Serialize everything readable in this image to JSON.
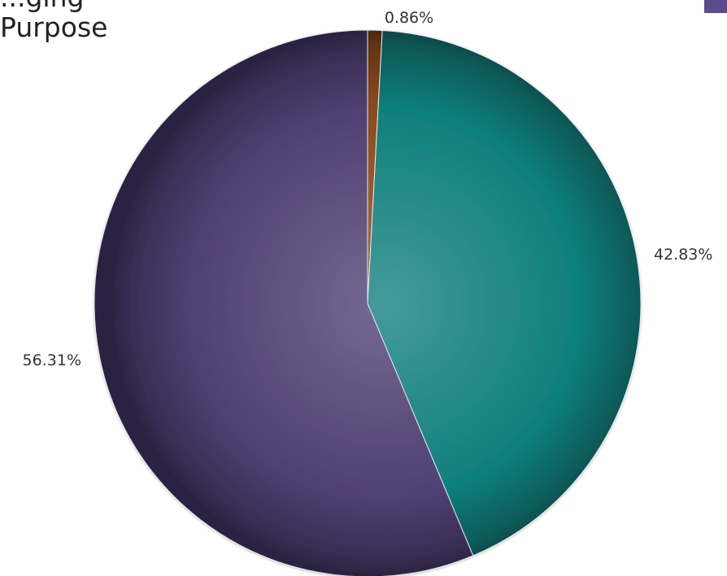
{
  "chart_data": {
    "type": "pie",
    "title_lines": [
      "...ging",
      "Purpose"
    ],
    "slices": [
      {
        "label": "0.86%",
        "value": 0.86,
        "color": "#8b4a1c"
      },
      {
        "label": "42.83%",
        "value": 42.83,
        "color": "#0f7f7c"
      },
      {
        "label": "56.31%",
        "value": 56.31,
        "color": "#4f3f73"
      }
    ],
    "start_angle_deg": 0,
    "direction": "clockwise",
    "legend": {
      "placement": "top-right",
      "partially_visible": true,
      "swatch_color": "#5b4b8a"
    }
  }
}
